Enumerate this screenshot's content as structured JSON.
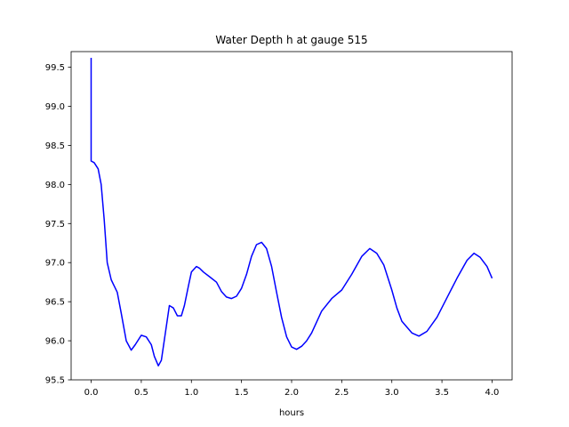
{
  "chart_data": {
    "type": "line",
    "title": "Water Depth h at gauge 515",
    "xlabel": "hours",
    "ylabel": "",
    "xlim": [
      -0.2,
      4.2
    ],
    "ylim": [
      95.5,
      99.7
    ],
    "x_ticks": [
      0.0,
      0.5,
      1.0,
      1.5,
      2.0,
      2.5,
      3.0,
      3.5,
      4.0
    ],
    "x_tick_labels": [
      "0.0",
      "0.5",
      "1.0",
      "1.5",
      "2.0",
      "2.5",
      "3.0",
      "3.5",
      "4.0"
    ],
    "y_ticks": [
      95.5,
      96.0,
      96.5,
      97.0,
      97.5,
      98.0,
      98.5,
      99.0,
      99.5
    ],
    "y_tick_labels": [
      "95.5",
      "96.0",
      "96.5",
      "97.0",
      "97.5",
      "98.0",
      "98.5",
      "99.0",
      "99.5"
    ],
    "grid": false,
    "legend": "none",
    "series": [
      {
        "color": "#0000ff",
        "x": [
          0.0,
          0.0,
          0.03,
          0.07,
          0.1,
          0.13,
          0.16,
          0.2,
          0.26,
          0.3,
          0.35,
          0.4,
          0.44,
          0.5,
          0.55,
          0.6,
          0.63,
          0.67,
          0.7,
          0.74,
          0.78,
          0.82,
          0.86,
          0.9,
          0.93,
          0.97,
          1.0,
          1.05,
          1.08,
          1.12,
          1.18,
          1.25,
          1.3,
          1.35,
          1.4,
          1.45,
          1.5,
          1.55,
          1.6,
          1.65,
          1.7,
          1.75,
          1.8,
          1.85,
          1.9,
          1.95,
          2.0,
          2.05,
          2.1,
          2.15,
          2.2,
          2.3,
          2.4,
          2.5,
          2.6,
          2.7,
          2.78,
          2.85,
          2.92,
          3.0,
          3.05,
          3.1,
          3.2,
          3.27,
          3.35,
          3.45,
          3.55,
          3.65,
          3.75,
          3.82,
          3.88,
          3.95,
          4.0
        ],
        "y": [
          99.62,
          98.3,
          98.28,
          98.2,
          98.0,
          97.55,
          97.0,
          96.78,
          96.62,
          96.35,
          96.0,
          95.88,
          95.95,
          96.07,
          96.05,
          95.95,
          95.8,
          95.68,
          95.75,
          96.1,
          96.45,
          96.42,
          96.32,
          96.32,
          96.45,
          96.7,
          96.88,
          96.95,
          96.93,
          96.88,
          96.82,
          96.75,
          96.63,
          96.56,
          96.54,
          96.57,
          96.67,
          96.85,
          97.08,
          97.23,
          97.26,
          97.18,
          96.95,
          96.62,
          96.3,
          96.05,
          95.92,
          95.89,
          95.93,
          96.0,
          96.1,
          96.38,
          96.54,
          96.65,
          96.85,
          97.08,
          97.18,
          97.12,
          96.97,
          96.65,
          96.42,
          96.25,
          96.1,
          96.06,
          96.12,
          96.3,
          96.55,
          96.8,
          97.03,
          97.12,
          97.07,
          96.95,
          96.8
        ]
      }
    ]
  }
}
